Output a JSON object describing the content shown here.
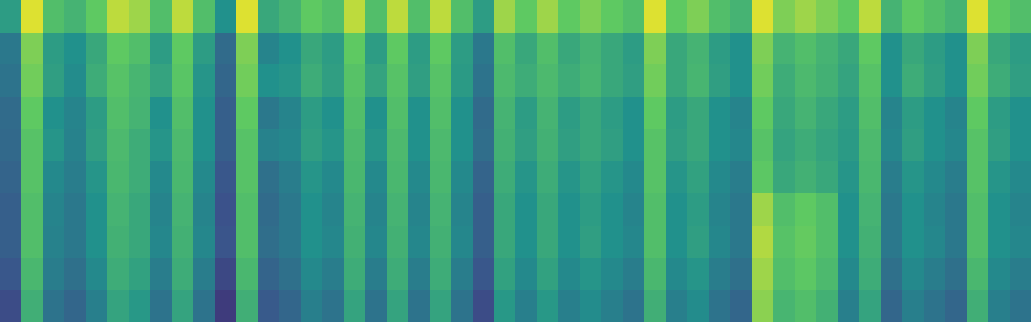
{
  "chart_data": {
    "type": "heatmap",
    "color": "viridis",
    "tick_labels": false,
    "zlim": [
      0,
      1
    ],
    "cells": [
      [
        0.55,
        0.95,
        0.7,
        0.65,
        0.75,
        0.9,
        0.85,
        0.7,
        0.9,
        0.7,
        0.5,
        0.95,
        0.6,
        0.65,
        0.75,
        0.7,
        0.9,
        0.7,
        0.9,
        0.7,
        0.9,
        0.7,
        0.55,
        0.85,
        0.75,
        0.85,
        0.75,
        0.8,
        0.75,
        0.7,
        0.95,
        0.75,
        0.8,
        0.7,
        0.65,
        0.95,
        0.8,
        0.85,
        0.8,
        0.75,
        0.9,
        0.65,
        0.75,
        0.7,
        0.65,
        0.95,
        0.75,
        0.7
      ],
      [
        0.4,
        0.8,
        0.55,
        0.5,
        0.6,
        0.75,
        0.7,
        0.55,
        0.75,
        0.55,
        0.35,
        0.8,
        0.45,
        0.5,
        0.6,
        0.55,
        0.75,
        0.55,
        0.75,
        0.55,
        0.75,
        0.55,
        0.4,
        0.7,
        0.6,
        0.7,
        0.6,
        0.65,
        0.6,
        0.55,
        0.8,
        0.6,
        0.65,
        0.55,
        0.5,
        0.8,
        0.65,
        0.7,
        0.65,
        0.6,
        0.75,
        0.5,
        0.6,
        0.55,
        0.5,
        0.8,
        0.6,
        0.55
      ],
      [
        0.38,
        0.78,
        0.56,
        0.48,
        0.62,
        0.72,
        0.66,
        0.58,
        0.73,
        0.52,
        0.33,
        0.78,
        0.5,
        0.52,
        0.62,
        0.56,
        0.72,
        0.58,
        0.72,
        0.56,
        0.72,
        0.54,
        0.38,
        0.68,
        0.62,
        0.68,
        0.62,
        0.66,
        0.6,
        0.56,
        0.78,
        0.6,
        0.66,
        0.56,
        0.5,
        0.78,
        0.62,
        0.68,
        0.64,
        0.58,
        0.72,
        0.5,
        0.62,
        0.56,
        0.5,
        0.78,
        0.62,
        0.56
      ],
      [
        0.35,
        0.75,
        0.5,
        0.45,
        0.55,
        0.7,
        0.65,
        0.5,
        0.7,
        0.5,
        0.3,
        0.75,
        0.4,
        0.45,
        0.55,
        0.5,
        0.7,
        0.5,
        0.7,
        0.5,
        0.7,
        0.5,
        0.35,
        0.65,
        0.55,
        0.65,
        0.55,
        0.6,
        0.55,
        0.5,
        0.75,
        0.55,
        0.6,
        0.5,
        0.45,
        0.75,
        0.6,
        0.65,
        0.6,
        0.55,
        0.7,
        0.45,
        0.55,
        0.5,
        0.45,
        0.75,
        0.55,
        0.5
      ],
      [
        0.34,
        0.72,
        0.52,
        0.44,
        0.56,
        0.68,
        0.62,
        0.52,
        0.68,
        0.5,
        0.3,
        0.72,
        0.44,
        0.46,
        0.56,
        0.52,
        0.68,
        0.52,
        0.68,
        0.5,
        0.68,
        0.5,
        0.36,
        0.64,
        0.56,
        0.64,
        0.56,
        0.6,
        0.56,
        0.5,
        0.72,
        0.56,
        0.6,
        0.5,
        0.46,
        0.72,
        0.58,
        0.62,
        0.58,
        0.54,
        0.68,
        0.46,
        0.56,
        0.5,
        0.46,
        0.72,
        0.56,
        0.5
      ],
      [
        0.32,
        0.72,
        0.47,
        0.42,
        0.52,
        0.67,
        0.62,
        0.47,
        0.67,
        0.47,
        0.27,
        0.72,
        0.37,
        0.42,
        0.52,
        0.47,
        0.67,
        0.47,
        0.67,
        0.47,
        0.67,
        0.47,
        0.32,
        0.62,
        0.52,
        0.62,
        0.52,
        0.57,
        0.52,
        0.47,
        0.72,
        0.52,
        0.57,
        0.47,
        0.42,
        0.74,
        0.6,
        0.64,
        0.6,
        0.52,
        0.67,
        0.42,
        0.52,
        0.47,
        0.42,
        0.72,
        0.52,
        0.47
      ],
      [
        0.3,
        0.7,
        0.45,
        0.4,
        0.5,
        0.65,
        0.6,
        0.45,
        0.65,
        0.45,
        0.25,
        0.7,
        0.35,
        0.4,
        0.5,
        0.45,
        0.65,
        0.45,
        0.65,
        0.45,
        0.65,
        0.45,
        0.3,
        0.6,
        0.5,
        0.6,
        0.5,
        0.55,
        0.5,
        0.45,
        0.7,
        0.5,
        0.55,
        0.45,
        0.4,
        0.85,
        0.7,
        0.75,
        0.7,
        0.5,
        0.65,
        0.4,
        0.5,
        0.45,
        0.4,
        0.7,
        0.5,
        0.45
      ],
      [
        0.3,
        0.7,
        0.44,
        0.4,
        0.5,
        0.64,
        0.6,
        0.46,
        0.64,
        0.46,
        0.26,
        0.7,
        0.36,
        0.4,
        0.5,
        0.46,
        0.64,
        0.46,
        0.64,
        0.46,
        0.64,
        0.46,
        0.3,
        0.6,
        0.5,
        0.6,
        0.5,
        0.56,
        0.5,
        0.46,
        0.7,
        0.5,
        0.56,
        0.46,
        0.4,
        0.88,
        0.72,
        0.76,
        0.7,
        0.5,
        0.64,
        0.4,
        0.5,
        0.46,
        0.4,
        0.7,
        0.5,
        0.46
      ],
      [
        0.27,
        0.67,
        0.42,
        0.37,
        0.47,
        0.62,
        0.57,
        0.42,
        0.62,
        0.42,
        0.22,
        0.67,
        0.32,
        0.37,
        0.47,
        0.42,
        0.62,
        0.42,
        0.62,
        0.42,
        0.62,
        0.42,
        0.27,
        0.57,
        0.47,
        0.57,
        0.47,
        0.52,
        0.47,
        0.42,
        0.67,
        0.47,
        0.52,
        0.42,
        0.37,
        0.85,
        0.7,
        0.74,
        0.68,
        0.47,
        0.62,
        0.37,
        0.47,
        0.42,
        0.37,
        0.67,
        0.47,
        0.42
      ],
      [
        0.23,
        0.63,
        0.38,
        0.33,
        0.43,
        0.58,
        0.53,
        0.38,
        0.58,
        0.38,
        0.18,
        0.63,
        0.28,
        0.33,
        0.43,
        0.38,
        0.58,
        0.38,
        0.58,
        0.38,
        0.58,
        0.38,
        0.23,
        0.53,
        0.43,
        0.53,
        0.43,
        0.48,
        0.43,
        0.38,
        0.63,
        0.43,
        0.48,
        0.38,
        0.33,
        0.82,
        0.66,
        0.7,
        0.64,
        0.43,
        0.58,
        0.33,
        0.43,
        0.38,
        0.33,
        0.63,
        0.43,
        0.38
      ]
    ]
  }
}
